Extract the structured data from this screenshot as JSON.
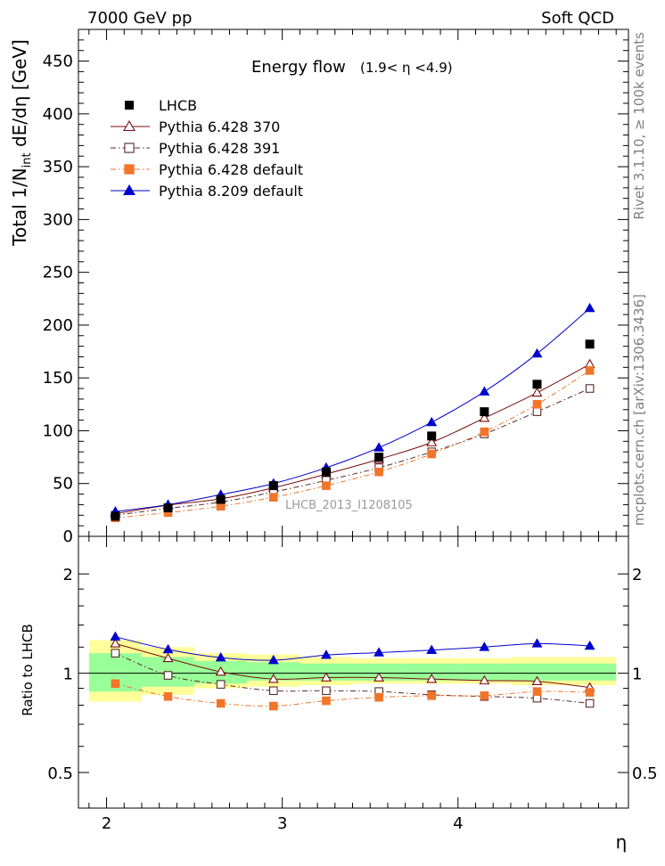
{
  "header": {
    "left": "7000 GeV pp",
    "right": "Soft QCD"
  },
  "side_labels": {
    "rivet": "Rivet 3.1.10, ≥ 100k events",
    "mcplots": "mcplots.cern.ch [arXiv:1306.3436]"
  },
  "chart_data": {
    "type": "line",
    "title": "Energy flow",
    "title_range": "(1.9< η <4.9)",
    "watermark": "LHCB_2013_I1208105",
    "xlabel": "η",
    "ylabel": "Total 1/N",
    "ylabel_sub": "int",
    "ylabel_tail": " dE/dη [GeV]",
    "ratio_ylabel": "Ratio to LHCB",
    "xlim": [
      1.84,
      4.97
    ],
    "ylim": [
      0,
      480
    ],
    "ratio_ylim": [
      0.39,
      2.6
    ],
    "ratio_log": true,
    "x_ticks": [
      "2",
      "3",
      "4"
    ],
    "y_ticks": [
      "0",
      "50",
      "100",
      "150",
      "200",
      "250",
      "300",
      "350",
      "400",
      "450"
    ],
    "ratio_ticks": [
      "0.5",
      "1",
      "2"
    ],
    "legend_position": "top-left",
    "x": [
      2.05,
      2.35,
      2.65,
      2.95,
      3.25,
      3.55,
      3.85,
      4.15,
      4.45,
      4.75
    ],
    "data": {
      "name": "LHCB",
      "values": [
        19,
        27,
        35,
        48,
        61,
        75,
        95,
        118,
        144,
        182
      ]
    },
    "series": [
      {
        "name": "Pythia 6.428 370",
        "color": "#7a0e0e",
        "marker": "triangle-open",
        "dash": "solid",
        "values": [
          21.5,
          29.5,
          35.5,
          46,
          59,
          73,
          89,
          112,
          136,
          163
        ]
      },
      {
        "name": "Pythia 6.428 391",
        "color": "#5a2a2a",
        "marker": "square-open",
        "dash": "dashdot",
        "values": [
          20,
          26.5,
          32.5,
          42,
          53,
          65,
          80,
          97,
          118,
          140
        ]
      },
      {
        "name": "Pythia 6.428 default",
        "color": "#f0742a",
        "marker": "square-filled",
        "dash": "dashdot",
        "values": [
          17.5,
          22.5,
          28.5,
          37,
          48,
          61,
          78,
          99,
          125,
          157
        ]
      },
      {
        "name": "Pythia 8.209 default",
        "color": "#0000cc",
        "marker": "triangle-filled",
        "dash": "solid",
        "values": [
          23.5,
          30,
          39.5,
          50,
          65,
          84,
          108,
          137,
          173,
          216
        ]
      }
    ],
    "ratio_series": [
      {
        "name": "Pythia 6.428 370",
        "values": [
          1.23,
          1.11,
          1.01,
          0.96,
          0.97,
          0.97,
          0.96,
          0.95,
          0.945,
          0.905
        ]
      },
      {
        "name": "Pythia 6.428 391",
        "values": [
          1.15,
          0.985,
          0.925,
          0.885,
          0.885,
          0.88,
          0.86,
          0.85,
          0.84,
          0.81
        ]
      },
      {
        "name": "Pythia 6.428 default",
        "values": [
          0.93,
          0.85,
          0.81,
          0.795,
          0.825,
          0.845,
          0.855,
          0.855,
          0.88,
          0.875
        ]
      },
      {
        "name": "Pythia 8.209 default",
        "values": [
          1.29,
          1.18,
          1.115,
          1.095,
          1.135,
          1.155,
          1.175,
          1.2,
          1.23,
          1.21
        ]
      }
    ],
    "bands": {
      "bin_edges": [
        1.9,
        2.2,
        2.5,
        2.8,
        3.1,
        3.4,
        3.7,
        4.0,
        4.3,
        4.6,
        4.9
      ],
      "yellow_lo": [
        0.82,
        0.86,
        0.9,
        0.91,
        0.92,
        0.93,
        0.93,
        0.93,
        0.92,
        0.92
      ],
      "yellow_hi": [
        1.26,
        1.2,
        1.15,
        1.14,
        1.12,
        1.11,
        1.11,
        1.11,
        1.12,
        1.12
      ],
      "green_lo": [
        0.88,
        0.91,
        0.93,
        0.95,
        0.95,
        0.95,
        0.95,
        0.95,
        0.95,
        0.95
      ],
      "green_hi": [
        1.15,
        1.12,
        1.09,
        1.08,
        1.07,
        1.07,
        1.07,
        1.07,
        1.07,
        1.07
      ],
      "yellow_color": "#ffff99",
      "green_color": "#99ff99"
    }
  }
}
